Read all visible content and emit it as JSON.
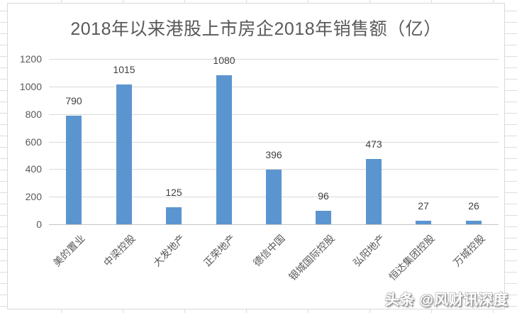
{
  "watermark": "头条 @风财讯深度",
  "chart_data": {
    "type": "bar",
    "title": "2018年以来港股上市房企2018年销售额（亿）",
    "categories": [
      "美的置业",
      "中梁控股",
      "大发地产",
      "正荣地产",
      "德信中国",
      "银城国际控股",
      "弘阳地产",
      "恒达集团控股",
      "万城控股"
    ],
    "values": [
      790,
      1015,
      125,
      1080,
      396,
      96,
      473,
      27,
      26
    ],
    "xlabel": "",
    "ylabel": "",
    "ylim": [
      0,
      1200
    ],
    "ytick_step": 200,
    "yticks": [
      0,
      200,
      400,
      600,
      800,
      1000,
      1200
    ],
    "grid": true,
    "legend": "none",
    "bar_color": "#5b95cf",
    "gridline_color": "#d9d9d9",
    "axis_label_color": "#595959",
    "value_label_color": "#404040",
    "title_color": "#595959"
  }
}
